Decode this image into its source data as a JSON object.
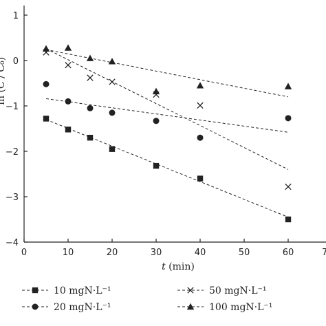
{
  "chart_data": {
    "type": "scatter",
    "title": "",
    "xlabel_italic": "t",
    "xlabel_rest": " (min)",
    "ylabel": "",
    "xlim": [
      0,
      70
    ],
    "ylim": [
      -4,
      1
    ],
    "xticks": [
      0,
      10,
      20,
      30,
      40,
      50,
      60
    ],
    "xtick_labels": [
      "0",
      "10",
      "20",
      "30",
      "40",
      "50",
      "60"
    ],
    "xtick_label_partial": "7",
    "yticks": [
      1,
      0,
      -1,
      -2,
      -3,
      -4
    ],
    "ytick_labels": [
      "1",
      "0",
      "−1",
      "−2",
      "−3",
      "−4"
    ],
    "ylabel_partial": "ln (C / C₀)",
    "grid": false,
    "legend_position": "bottom",
    "series": [
      {
        "name": "10 mgN·L⁻¹",
        "marker": "square",
        "x": [
          5,
          10,
          15,
          20,
          30,
          40,
          60
        ],
        "y": [
          -1.28,
          -1.52,
          -1.7,
          -1.95,
          -2.32,
          -2.6,
          -3.5
        ],
        "fit": {
          "x": [
            5,
            60
          ],
          "y": [
            -1.3,
            -3.45
          ]
        }
      },
      {
        "name": "20 mgN·L⁻¹",
        "marker": "circle",
        "x": [
          5,
          10,
          15,
          20,
          30,
          40,
          60
        ],
        "y": [
          -0.52,
          -0.9,
          -1.05,
          -1.15,
          -1.33,
          -1.7,
          -1.27
        ],
        "fit": {
          "x": [
            5,
            60
          ],
          "y": [
            -0.84,
            -1.58
          ]
        }
      },
      {
        "name": "50 mgN·L⁻¹",
        "marker": "cross",
        "x": [
          5,
          10,
          15,
          20,
          30,
          40,
          60
        ],
        "y": [
          0.18,
          -0.1,
          -0.38,
          -0.47,
          -0.75,
          -0.99,
          -2.78
        ],
        "fit": {
          "x": [
            5,
            60
          ],
          "y": [
            0.26,
            -2.4
          ]
        }
      },
      {
        "name": "100 mgN·L⁻¹",
        "marker": "triangle",
        "x": [
          5,
          10,
          15,
          20,
          30,
          40,
          60
        ],
        "y": [
          0.26,
          0.28,
          0.05,
          -0.02,
          -0.68,
          -0.55,
          -0.57
        ],
        "fit": {
          "x": [
            5,
            60
          ],
          "y": [
            0.24,
            -0.8
          ]
        }
      }
    ]
  }
}
